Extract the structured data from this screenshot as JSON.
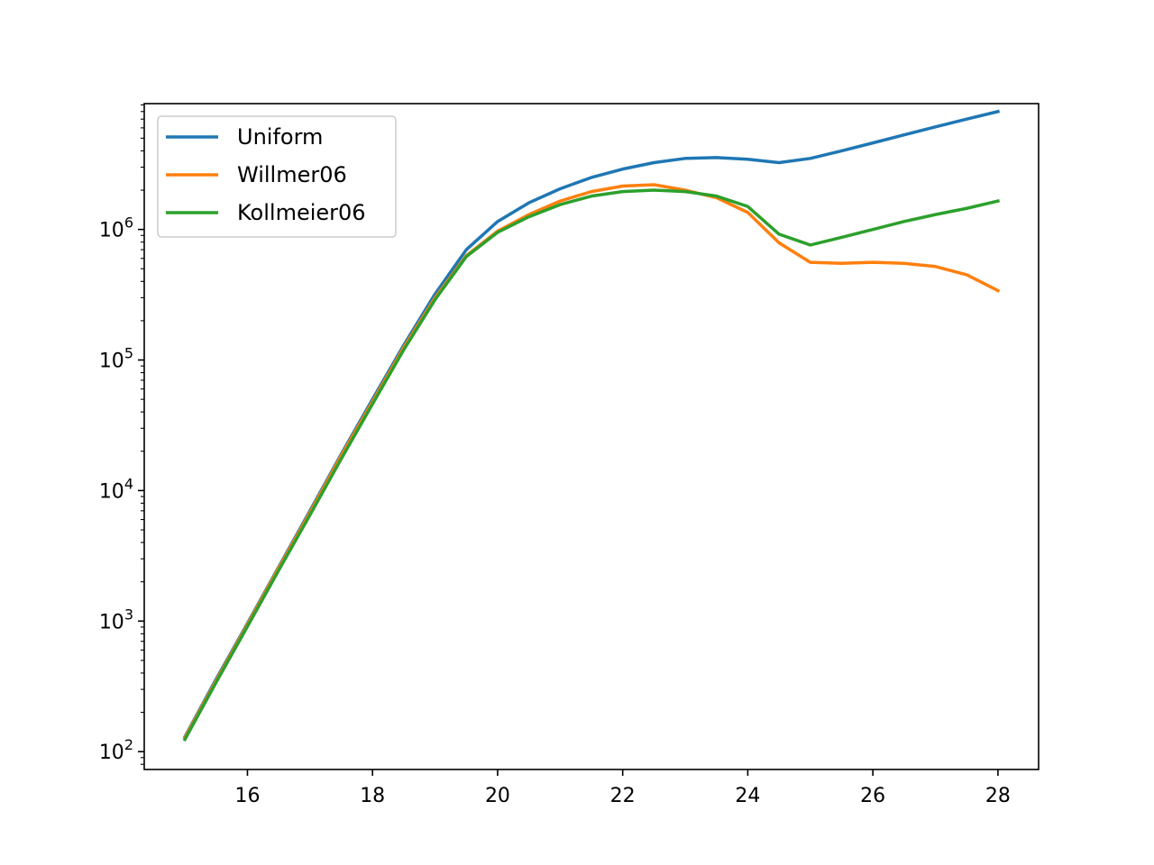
{
  "chart_data": {
    "type": "line",
    "title": "",
    "xlabel": "",
    "ylabel": "",
    "x_scale": "linear",
    "y_scale": "log",
    "xlim": [
      14.35,
      28.65
    ],
    "ylim": [
      73,
      9200000
    ],
    "grid": false,
    "legend_position": "upper-left",
    "x_ticks": [
      16,
      18,
      20,
      22,
      24,
      26,
      28
    ],
    "x_tick_labels": [
      "16",
      "18",
      "20",
      "22",
      "24",
      "26",
      "28"
    ],
    "y_ticks": [
      100,
      1000,
      10000,
      100000,
      1000000
    ],
    "y_tick_labels": [
      {
        "base": "10",
        "exp": "2"
      },
      {
        "base": "10",
        "exp": "3"
      },
      {
        "base": "10",
        "exp": "4"
      },
      {
        "base": "10",
        "exp": "5"
      },
      {
        "base": "10",
        "exp": "6"
      }
    ],
    "x": [
      15,
      15.5,
      16,
      16.5,
      17,
      17.5,
      18,
      18.5,
      19,
      19.5,
      20,
      20.5,
      21,
      21.5,
      22,
      22.5,
      23,
      23.5,
      24,
      24.5,
      25,
      25.5,
      26,
      26.5,
      27,
      27.5,
      28
    ],
    "series": [
      {
        "name": "Uniform",
        "color": "#1f77b4",
        "values": [
          130,
          360,
          960,
          2600,
          7000,
          19000,
          50000,
          130000,
          320000,
          700000,
          1150000,
          1600000,
          2050000,
          2500000,
          2900000,
          3250000,
          3500000,
          3550000,
          3450000,
          3250000,
          3500000,
          4000000,
          4600000,
          5300000,
          6100000,
          7000000,
          8000000
        ]
      },
      {
        "name": "Willmer06",
        "color": "#ff7f0e",
        "values": [
          128,
          350,
          940,
          2550,
          6800,
          18500,
          48000,
          125000,
          300000,
          630000,
          970000,
          1300000,
          1650000,
          1950000,
          2150000,
          2200000,
          2000000,
          1750000,
          1350000,
          790000,
          560000,
          550000,
          560000,
          550000,
          520000,
          450000,
          340000
        ]
      },
      {
        "name": "Kollmeier06",
        "color": "#2ca02c",
        "values": [
          124,
          340,
          910,
          2450,
          6500,
          17500,
          46000,
          120000,
          290000,
          620000,
          950000,
          1250000,
          1550000,
          1800000,
          1950000,
          2000000,
          1950000,
          1800000,
          1500000,
          920000,
          760000,
          870000,
          1000000,
          1150000,
          1300000,
          1450000,
          1650000
        ]
      }
    ]
  }
}
